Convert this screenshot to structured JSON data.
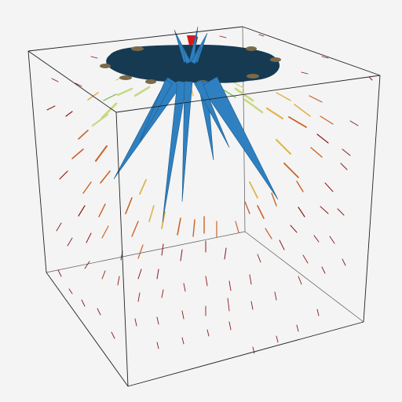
{
  "scene": {
    "background": "#f4f4f4",
    "frame_color": "#222222",
    "sheet_color": "#163a52",
    "spike_color": "#2f80c0",
    "spike_edge": "#1b5a8c",
    "marker_color": "#d81818",
    "glyph_colormap": [
      "#8b1a1a",
      "#c8642a",
      "#e0b24a",
      "#c8d884",
      "#86c06a"
    ],
    "icons": [
      "vector-field-glyph",
      "surface-spike"
    ]
  }
}
